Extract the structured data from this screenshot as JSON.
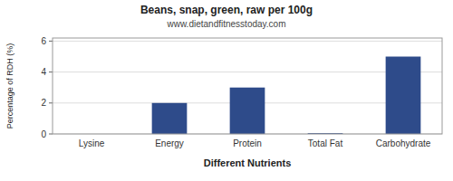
{
  "chart_data": {
    "type": "bar",
    "title": "Beans, snap, green, raw per 100g",
    "subtitle": "www.dietandfitnesstoday.com",
    "xlabel": "Different Nutrients",
    "ylabel": "Percentage of RDH (%)",
    "categories": [
      "Lysine",
      "Energy",
      "Protein",
      "Total Fat",
      "Carbohydrate"
    ],
    "values": [
      0.0,
      2.0,
      3.0,
      0.05,
      5.0
    ],
    "color": "#2e4b8a",
    "ylim": [
      0,
      6.2
    ],
    "yticks": [
      0,
      2,
      4,
      6
    ],
    "grid": true
  }
}
